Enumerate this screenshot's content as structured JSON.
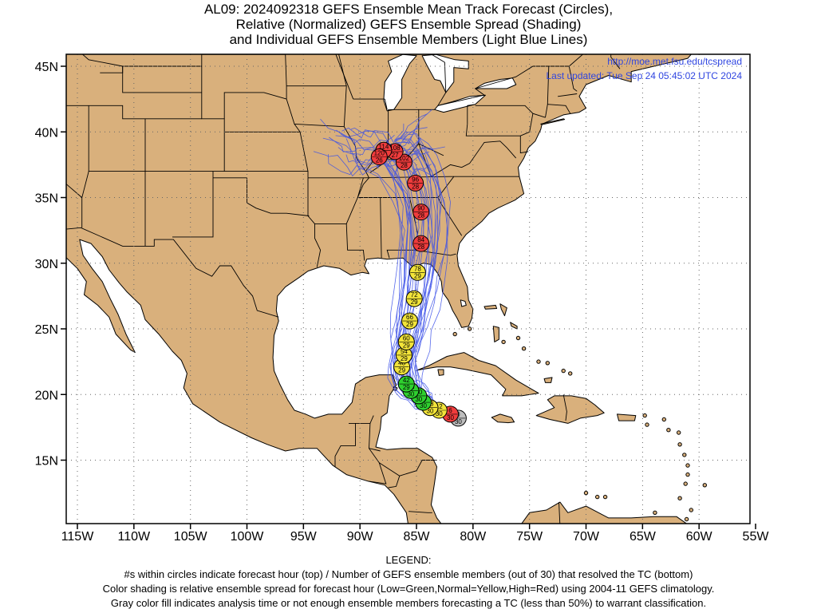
{
  "title": {
    "line1": "AL09: 2024092318 GEFS Ensemble Mean Track Forecast (Circles),",
    "line2": "Relative (Normalized) GEFS Ensemble Spread (Shading)",
    "line3": "and Individual GEFS Ensemble Members (Light Blue Lines)"
  },
  "credits": {
    "url": "http://moe.met.fsu.edu/tcspread",
    "updated": "Last updated: Tue Sep 24 05:45:02 UTC 2024"
  },
  "axes": {
    "lon_labels": [
      "115W",
      "110W",
      "105W",
      "100W",
      "95W",
      "90W",
      "85W",
      "80W",
      "75W",
      "70W",
      "65W",
      "60W",
      "55W"
    ],
    "lon_values": [
      -115,
      -110,
      -105,
      -100,
      -95,
      -90,
      -85,
      -80,
      -75,
      -70,
      -65,
      -60,
      -55
    ],
    "lat_labels": [
      "45N",
      "40N",
      "35N",
      "30N",
      "25N",
      "20N",
      "15N"
    ],
    "lat_values": [
      45,
      40,
      35,
      30,
      25,
      20,
      15
    ]
  },
  "colors": {
    "land": "#d9b07c",
    "ocean": "#ffffff",
    "member_line": "#3a4fe8",
    "credit_text": "#2f45e0",
    "high_spread": "#f03c3c",
    "normal_spread": "#f2e43a",
    "low_spread": "#2fd02f",
    "insufficient": "#bdbdbd"
  },
  "track": [
    {
      "hour": "0",
      "members": "30",
      "lat": 18.2,
      "lon": -81.3,
      "spread": "gray"
    },
    {
      "hour": "6",
      "members": "30",
      "lat": 18.5,
      "lon": -82.0,
      "spread": "red"
    },
    {
      "hour": "12",
      "members": "30",
      "lat": 18.8,
      "lon": -83.0,
      "spread": "yellow"
    },
    {
      "hour": "18",
      "members": "30",
      "lat": 19.0,
      "lon": -83.8,
      "spread": "yellow"
    },
    {
      "hour": "24",
      "members": "30",
      "lat": 19.4,
      "lon": -84.4,
      "spread": "green"
    },
    {
      "hour": "30",
      "members": "30",
      "lat": 19.9,
      "lon": -84.8,
      "spread": "green"
    },
    {
      "hour": "36",
      "members": "30",
      "lat": 20.3,
      "lon": -85.5,
      "spread": "green"
    },
    {
      "hour": "42",
      "members": "29",
      "lat": 20.8,
      "lon": -85.9,
      "spread": "green"
    },
    {
      "hour": "48",
      "members": "29",
      "lat": 22.1,
      "lon": -86.3,
      "spread": "yellow"
    },
    {
      "hour": "54",
      "members": "29",
      "lat": 23.0,
      "lon": -86.1,
      "spread": "yellow"
    },
    {
      "hour": "60",
      "members": "29",
      "lat": 24.0,
      "lon": -85.9,
      "spread": "yellow"
    },
    {
      "hour": "66",
      "members": "29",
      "lat": 25.6,
      "lon": -85.6,
      "spread": "yellow"
    },
    {
      "hour": "72",
      "members": "29",
      "lat": 27.3,
      "lon": -85.2,
      "spread": "yellow"
    },
    {
      "hour": "78",
      "members": "29",
      "lat": 29.3,
      "lon": -84.9,
      "spread": "yellow"
    },
    {
      "hour": "84",
      "members": "28",
      "lat": 31.5,
      "lon": -84.6,
      "spread": "red"
    },
    {
      "hour": "90",
      "members": "28",
      "lat": 33.9,
      "lon": -84.6,
      "spread": "red"
    },
    {
      "hour": "96",
      "members": "28",
      "lat": 36.1,
      "lon": -85.1,
      "spread": "red"
    },
    {
      "hour": "102",
      "members": "28",
      "lat": 37.7,
      "lon": -86.1,
      "spread": "red"
    },
    {
      "hour": "108",
      "members": "27",
      "lat": 38.5,
      "lon": -86.9,
      "spread": "red"
    },
    {
      "hour": "114",
      "members": "26",
      "lat": 38.6,
      "lon": -87.9,
      "spread": "red"
    },
    {
      "hour": "120",
      "members": "26",
      "lat": 38.1,
      "lon": -88.3,
      "spread": "red"
    }
  ],
  "legend": {
    "title": "LEGEND:",
    "line1": "#s within circles indicate forecast hour (top) / Number of GEFS ensemble members (out of 30) that resolved the TC (bottom)",
    "line2": "Color shading is relative ensemble spread for forecast hour (Low=Green,Normal=Yellow,High=Red) using 2004-11 GEFS climatology.",
    "line3": "Gray color fill indicates analysis time or not enough ensemble members forecasting a TC (less than 50%) to warrant classification."
  }
}
